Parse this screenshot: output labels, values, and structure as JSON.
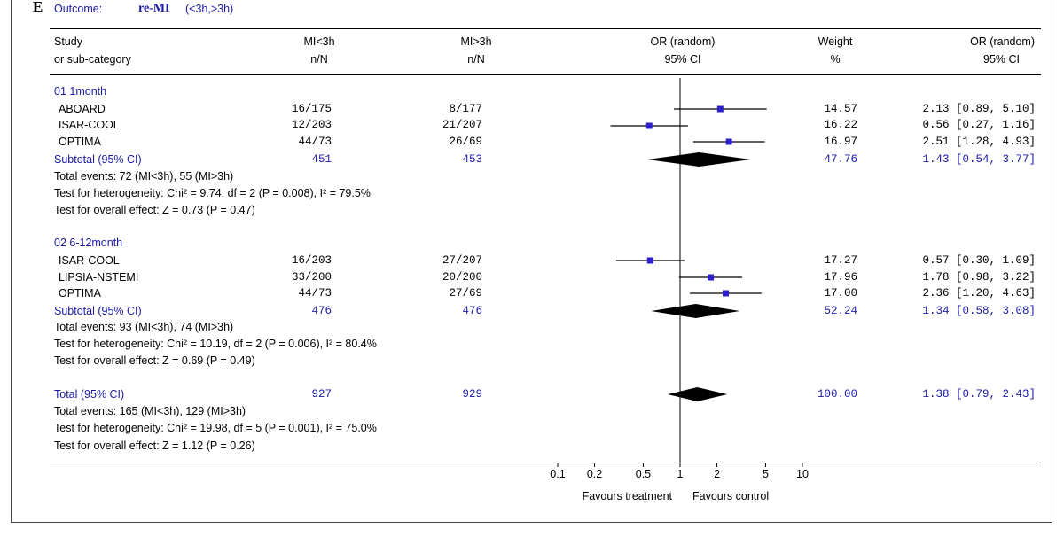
{
  "panel": "E",
  "outcome_label": "Outcome:",
  "outcome": "re-MI",
  "outcome_detail": "(<3h,>3h)",
  "headers": {
    "study": [
      "Study",
      "or sub-category"
    ],
    "g1": [
      "MI<3h",
      "n/N"
    ],
    "g2": [
      "MI>3h",
      "n/N"
    ],
    "plot": [
      "OR (random)",
      "95% CI"
    ],
    "weight": [
      "Weight",
      "%"
    ],
    "or": [
      "OR (random)",
      "95% CI"
    ]
  },
  "axis": {
    "ticks": [
      "0.1",
      "0.2",
      "0.5",
      "1",
      "2",
      "5",
      "10"
    ],
    "left_label": "Favours treatment",
    "right_label": "Favours control"
  },
  "chart_data": {
    "type": "forest",
    "title": "Outcome: re-MI (<3h,>3h)",
    "scale": "log",
    "xlim": [
      0.1,
      10
    ],
    "null_value": 1,
    "xlabel_left": "Favours treatment",
    "xlabel_right": "Favours control",
    "subgroups": [
      {
        "name": "01 1month",
        "studies": [
          {
            "study": "ABOARD",
            "g1": "16/175",
            "g2": "8/177",
            "weight": "14.57",
            "or": 2.13,
            "lo": 0.89,
            "hi": 5.1,
            "ci_text": "2.13 [0.89, 5.10]"
          },
          {
            "study": "ISAR-COOL",
            "g1": "12/203",
            "g2": "21/207",
            "weight": "16.22",
            "or": 0.56,
            "lo": 0.27,
            "hi": 1.16,
            "ci_text": "0.56 [0.27, 1.16]"
          },
          {
            "study": "OPTIMA",
            "g1": "44/73",
            "g2": "26/69",
            "weight": "16.97",
            "or": 2.51,
            "lo": 1.28,
            "hi": 4.93,
            "ci_text": "2.51 [1.28, 4.93]"
          }
        ],
        "subtotal": {
          "label": "Subtotal (95% CI)",
          "g1": "451",
          "g2": "453",
          "weight": "47.76",
          "or": 1.43,
          "lo": 0.54,
          "hi": 3.77,
          "ci_text": "1.43 [0.54, 3.77]"
        },
        "notes": [
          "Total events: 72 (MI<3h), 55 (MI>3h)",
          "Test for heterogeneity: Chi² = 9.74, df = 2 (P = 0.008), I² = 79.5%",
          "Test for overall effect: Z = 0.73 (P = 0.47)"
        ]
      },
      {
        "name": "02 6-12month",
        "studies": [
          {
            "study": "ISAR-COOL",
            "g1": "16/203",
            "g2": "27/207",
            "weight": "17.27",
            "or": 0.57,
            "lo": 0.3,
            "hi": 1.09,
            "ci_text": "0.57 [0.30, 1.09]"
          },
          {
            "study": "LIPSIA-NSTEMI",
            "g1": "33/200",
            "g2": "20/200",
            "weight": "17.96",
            "or": 1.78,
            "lo": 0.98,
            "hi": 3.22,
            "ci_text": "1.78 [0.98, 3.22]"
          },
          {
            "study": "OPTIMA",
            "g1": "44/73",
            "g2": "27/69",
            "weight": "17.00",
            "or": 2.36,
            "lo": 1.2,
            "hi": 4.63,
            "ci_text": "2.36 [1.20, 4.63]"
          }
        ],
        "subtotal": {
          "label": "Subtotal (95% CI)",
          "g1": "476",
          "g2": "476",
          "weight": "52.24",
          "or": 1.34,
          "lo": 0.58,
          "hi": 3.08,
          "ci_text": "1.34 [0.58, 3.08]"
        },
        "notes": [
          "Total events: 93 (MI<3h), 74 (MI>3h)",
          "Test for heterogeneity: Chi² = 10.19, df = 2 (P = 0.006), I² = 80.4%",
          "Test for overall effect: Z = 0.69 (P = 0.49)"
        ]
      }
    ],
    "total": {
      "label": "Total (95% CI)",
      "g1": "927",
      "g2": "929",
      "weight": "100.00",
      "or": 1.38,
      "lo": 0.79,
      "hi": 2.43,
      "ci_text": "1.38 [0.79, 2.43]",
      "notes": [
        "Total events: 165 (MI<3h), 129 (MI>3h)",
        "Test for heterogeneity: Chi² = 19.98, df = 5 (P = 0.001), I² = 75.0%",
        "Test for overall effect: Z = 1.12 (P = 0.26)"
      ]
    }
  },
  "colors": {
    "text_blue": "#1a1aa6",
    "marker": "#2b1fc9",
    "line": "#000000"
  }
}
